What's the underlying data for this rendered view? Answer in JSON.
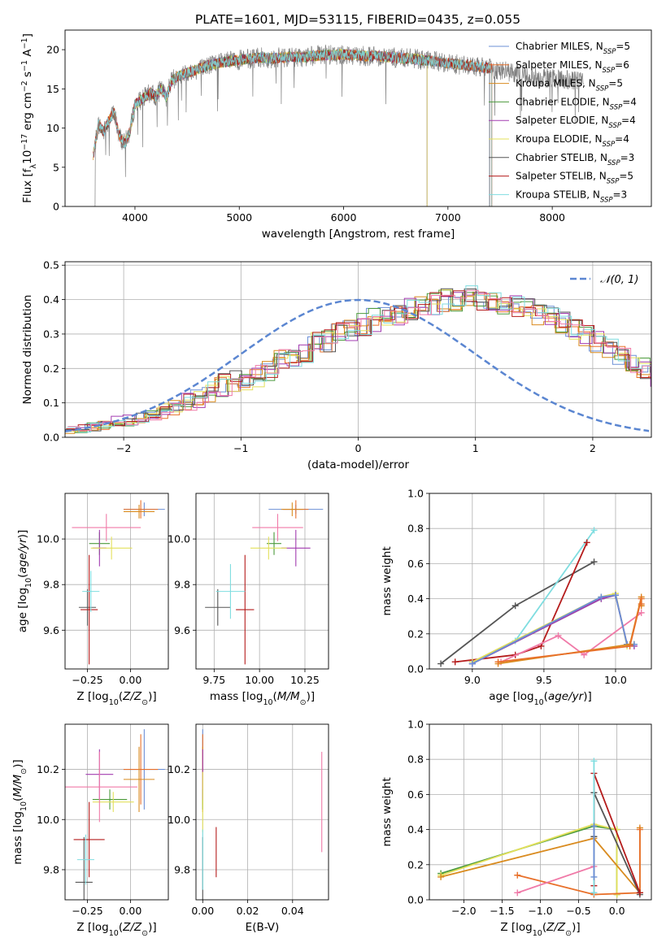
{
  "title": "PLATE=1601, MJD=53115, FIBERID=0435, z=0.055",
  "colors": [
    "#6b8fd6",
    "#e8702a",
    "#d98b1f",
    "#4b9a3c",
    "#a23bb0",
    "#e3e05b",
    "#555555",
    "#b51c1c",
    "#7fdde0",
    "#f07aa8"
  ],
  "chart_data": [
    {
      "id": "spectrum",
      "type": "line",
      "xlabel": "wavelength [Angstrom, rest frame]",
      "ylabel": "Flux [f_λ 10^-17 erg cm^-2 s^-1 A^-1]",
      "xlim": [
        3330,
        8950
      ],
      "ylim": [
        0,
        22.5
      ],
      "xticks": [
        4000,
        5000,
        6000,
        7000,
        8000
      ],
      "yticks": [
        0,
        5,
        10,
        15,
        20
      ],
      "grid": false,
      "legend_position": "top-right",
      "envelope": {
        "x": [
          3600,
          3650,
          3700,
          3750,
          3800,
          3850,
          3900,
          3950,
          4000,
          4050,
          4100,
          4150,
          4200,
          4250,
          4300,
          4350,
          4400,
          4500,
          4600,
          4700,
          4800,
          4900,
          5000,
          5100,
          5200,
          5300,
          5400,
          5500,
          5600,
          5700,
          5800,
          5900,
          6000,
          6100,
          6200,
          6300,
          6400,
          6500,
          6600,
          6700,
          6800,
          6900,
          7000,
          7100,
          7200,
          7300,
          7400,
          7500,
          7600,
          7700,
          7800,
          7900,
          8000,
          8100,
          8200,
          8300
        ],
        "y": [
          6.5,
          10.5,
          9.5,
          11,
          12,
          9,
          8,
          9.5,
          13,
          13.5,
          14,
          14.5,
          14,
          15,
          14,
          16,
          16.5,
          17,
          17.5,
          18,
          18.3,
          18.5,
          18.7,
          18.8,
          19,
          18.9,
          19,
          19.1,
          19,
          19.2,
          19.3,
          19.3,
          19.4,
          19.3,
          19.2,
          19.2,
          19.1,
          19,
          18.9,
          18.8,
          18.6,
          18.5,
          18.3,
          18.1,
          18,
          17.8,
          17.6,
          17.4,
          17.1,
          16.9,
          16.6,
          16.5,
          16.3,
          16.2,
          16.0,
          15.9
        ]
      },
      "legend": [
        {
          "label": "Chabrier MILES, N",
          "sub": "SSP",
          "suffix": "=5"
        },
        {
          "label": "Salpeter MILES, N",
          "sub": "SSP",
          "suffix": "=6"
        },
        {
          "label": "Kroupa MILES, N",
          "sub": "SSP",
          "suffix": "=5"
        },
        {
          "label": "Chabrier ELODIE, N",
          "sub": "SSP",
          "suffix": "=4"
        },
        {
          "label": "Salpeter ELODIE, N",
          "sub": "SSP",
          "suffix": "=4"
        },
        {
          "label": "Kroupa ELODIE, N",
          "sub": "SSP",
          "suffix": "=4"
        },
        {
          "label": "Chabrier STELIB, N",
          "sub": "SSP",
          "suffix": "=3"
        },
        {
          "label": "Salpeter STELIB, N",
          "sub": "SSP",
          "suffix": "=5"
        },
        {
          "label": "Kroupa STELIB, N",
          "sub": "SSP",
          "suffix": "=3"
        }
      ]
    },
    {
      "id": "residuals",
      "type": "histogram",
      "xlabel": "(data-model)/error",
      "ylabel": "Normed distribution",
      "xlim": [
        -2.5,
        2.5
      ],
      "ylim": [
        0,
        0.51
      ],
      "xticks": [
        -2,
        -1,
        0,
        1,
        2
      ],
      "yticks": [
        0.0,
        0.1,
        0.2,
        0.3,
        0.4,
        0.5
      ],
      "grid": true,
      "legend_position": "top-right",
      "gaussian_label": "𝒩(0, 1)",
      "bin_start": -2.5,
      "bin_width": 0.1,
      "base": [
        0.02,
        0.025,
        0.03,
        0.035,
        0.045,
        0.05,
        0.055,
        0.065,
        0.075,
        0.09,
        0.1,
        0.11,
        0.13,
        0.15,
        0.16,
        0.17,
        0.18,
        0.2,
        0.22,
        0.24,
        0.25,
        0.27,
        0.28,
        0.3,
        0.31,
        0.33,
        0.34,
        0.35,
        0.36,
        0.37,
        0.38,
        0.39,
        0.4,
        0.4,
        0.41,
        0.4,
        0.4,
        0.39,
        0.38,
        0.37,
        0.36,
        0.35,
        0.33,
        0.31,
        0.3,
        0.28,
        0.26,
        0.24,
        0.22,
        0.2,
        0.18,
        0.16,
        0.15,
        0.13,
        0.12,
        0.1,
        0.09,
        0.08,
        0.07,
        0.06,
        0.05,
        0.045,
        0.04,
        0.035,
        0.03,
        0.025,
        0.02,
        0.02,
        0.018,
        0.015,
        0.012,
        0.01,
        0.01,
        0.008,
        0.006,
        0.005,
        0.004,
        0.003,
        0.002,
        0.002
      ]
    },
    {
      "id": "age_vs_Z",
      "type": "errorbar",
      "xlabel": "Z [log10(Z/Z⊙)]",
      "ylabel": "age [log10(age/yr)]",
      "xlim": [
        -0.38,
        0.22
      ],
      "ylim": [
        9.43,
        10.2
      ],
      "xticks": [
        -0.25,
        0.0
      ],
      "xtick_labels": [
        "−0.25",
        "0.00"
      ],
      "yticks": [
        9.6,
        9.8,
        10.0
      ],
      "grid": true,
      "points": [
        {
          "x": 0.08,
          "y": 10.13,
          "xerr": 0.12,
          "yerr": 0.03,
          "c": 0
        },
        {
          "x": 0.06,
          "y": 10.13,
          "xerr": 0.1,
          "yerr": 0.04,
          "c": 1
        },
        {
          "x": 0.05,
          "y": 10.12,
          "xerr": 0.09,
          "yerr": 0.03,
          "c": 2
        },
        {
          "x": -0.18,
          "y": 9.98,
          "xerr": 0.06,
          "yerr": 0.05,
          "c": 3
        },
        {
          "x": -0.18,
          "y": 9.96,
          "xerr": 0.04,
          "yerr": 0.08,
          "c": 4
        },
        {
          "x": -0.11,
          "y": 9.96,
          "xerr": 0.12,
          "yerr": 0.05,
          "c": 5
        },
        {
          "x": -0.25,
          "y": 9.7,
          "xerr": 0.05,
          "yerr": 0.08,
          "c": 6
        },
        {
          "x": -0.24,
          "y": 9.69,
          "xerr": 0.05,
          "yerr": 0.24,
          "c": 7
        },
        {
          "x": -0.23,
          "y": 9.77,
          "xerr": 0.05,
          "yerr": 0.09,
          "c": 8
        },
        {
          "x": -0.14,
          "y": 10.05,
          "xerr": 0.2,
          "yerr": 0.06,
          "c": 9
        }
      ]
    },
    {
      "id": "age_vs_mass",
      "type": "errorbar",
      "xlabel": "mass [log10(M/M⊙)]",
      "ylabel": "",
      "xlim": [
        9.65,
        10.38
      ],
      "ylim": [
        9.43,
        10.2
      ],
      "xticks": [
        9.75,
        10.0,
        10.25
      ],
      "xtick_labels": [
        "9.75",
        "10.00",
        "10.25"
      ],
      "yticks": [
        9.6,
        9.8,
        10.0
      ],
      "grid": true,
      "points": [
        {
          "x": 10.2,
          "y": 10.13,
          "xerr": 0.15,
          "yerr": 0.02,
          "c": 0
        },
        {
          "x": 10.2,
          "y": 10.13,
          "xerr": 0.07,
          "yerr": 0.04,
          "c": 1
        },
        {
          "x": 10.18,
          "y": 10.13,
          "xerr": 0.06,
          "yerr": 0.03,
          "c": 2
        },
        {
          "x": 10.08,
          "y": 9.98,
          "xerr": 0.04,
          "yerr": 0.05,
          "c": 3
        },
        {
          "x": 10.2,
          "y": 9.96,
          "xerr": 0.08,
          "yerr": 0.08,
          "c": 4
        },
        {
          "x": 10.05,
          "y": 9.96,
          "xerr": 0.1,
          "yerr": 0.05,
          "c": 5
        },
        {
          "x": 9.77,
          "y": 9.7,
          "xerr": 0.07,
          "yerr": 0.08,
          "c": 6
        },
        {
          "x": 9.92,
          "y": 9.69,
          "xerr": 0.05,
          "yerr": 0.24,
          "c": 7
        },
        {
          "x": 9.84,
          "y": 9.77,
          "xerr": 0.08,
          "yerr": 0.12,
          "c": 8
        },
        {
          "x": 10.1,
          "y": 10.05,
          "xerr": 0.14,
          "yerr": 0.06,
          "c": 9
        }
      ]
    },
    {
      "id": "massweight_vs_age",
      "type": "line",
      "xlabel": "age [log10(age/yr)]",
      "ylabel": "mass weight",
      "xlim": [
        8.7,
        10.25
      ],
      "ylim": [
        0,
        1.0
      ],
      "xticks": [
        9.0,
        9.5,
        10.0
      ],
      "xtick_labels": [
        "9.0",
        "9.5",
        "10.0"
      ],
      "yticks": [
        0.0,
        0.2,
        0.4,
        0.6,
        0.8,
        1.0
      ],
      "grid": true,
      "series": [
        {
          "c": 6,
          "x": [
            8.78,
            9.3,
            9.85
          ],
          "y": [
            0.03,
            0.36,
            0.61
          ]
        },
        {
          "c": 8,
          "x": [
            9.0,
            9.3,
            9.85
          ],
          "y": [
            0.04,
            0.16,
            0.79
          ]
        },
        {
          "c": 7,
          "x": [
            8.88,
            9.3,
            9.48,
            9.8
          ],
          "y": [
            0.04,
            0.08,
            0.13,
            0.72
          ]
        },
        {
          "c": 9,
          "x": [
            9.2,
            9.6,
            9.78,
            10.18
          ],
          "y": [
            0.04,
            0.19,
            0.08,
            0.32
          ]
        },
        {
          "c": 3,
          "x": [
            9.0,
            9.9,
            10.0,
            10.08,
            10.13
          ],
          "y": [
            0.03,
            0.4,
            0.42,
            0.14,
            0.14
          ]
        },
        {
          "c": 5,
          "x": [
            9.0,
            9.9,
            10.0,
            10.08,
            10.13
          ],
          "y": [
            0.04,
            0.41,
            0.43,
            0.13,
            0.14
          ]
        },
        {
          "c": 4,
          "x": [
            9.0,
            9.9,
            10.0,
            10.08,
            10.13
          ],
          "y": [
            0.03,
            0.4,
            0.42,
            0.14,
            0.13
          ]
        },
        {
          "c": 0,
          "x": [
            9.0,
            9.9,
            10.0,
            10.08,
            10.13
          ],
          "y": [
            0.03,
            0.41,
            0.42,
            0.14,
            0.14
          ]
        },
        {
          "c": 2,
          "x": [
            9.18,
            10.1,
            10.18,
            10.18
          ],
          "y": [
            0.03,
            0.14,
            0.41,
            0.36
          ]
        },
        {
          "c": 1,
          "x": [
            9.18,
            10.1,
            10.18,
            10.18
          ],
          "y": [
            0.04,
            0.13,
            0.4,
            0.37
          ]
        }
      ]
    },
    {
      "id": "mass_vs_Z",
      "type": "errorbar",
      "xlabel": "Z [log10(Z/Z⊙)]",
      "ylabel": "mass [log10(M/M⊙)]",
      "xlim": [
        -0.38,
        0.22
      ],
      "ylim": [
        9.68,
        10.38
      ],
      "xticks": [
        -0.25,
        0.0
      ],
      "xtick_labels": [
        "−0.25",
        "0.00"
      ],
      "yticks": [
        9.8,
        10.0,
        10.2
      ],
      "grid": true,
      "points": [
        {
          "x": 0.08,
          "y": 10.2,
          "xerr": 0.12,
          "yerr": 0.16,
          "c": 0
        },
        {
          "x": 0.06,
          "y": 10.2,
          "xerr": 0.1,
          "yerr": 0.14,
          "c": 1
        },
        {
          "x": 0.05,
          "y": 10.16,
          "xerr": 0.09,
          "yerr": 0.13,
          "c": 2
        },
        {
          "x": -0.12,
          "y": 10.08,
          "xerr": 0.1,
          "yerr": 0.04,
          "c": 3
        },
        {
          "x": -0.18,
          "y": 10.18,
          "xerr": 0.08,
          "yerr": 0.1,
          "c": 4
        },
        {
          "x": -0.1,
          "y": 10.07,
          "xerr": 0.12,
          "yerr": 0.04,
          "c": 5
        },
        {
          "x": -0.27,
          "y": 9.75,
          "xerr": 0.05,
          "yerr": 0.18,
          "c": 6
        },
        {
          "x": -0.24,
          "y": 9.92,
          "xerr": 0.09,
          "yerr": 0.15,
          "c": 7
        },
        {
          "x": -0.26,
          "y": 9.84,
          "xerr": 0.05,
          "yerr": 0.1,
          "c": 8
        },
        {
          "x": -0.18,
          "y": 10.13,
          "xerr": 0.22,
          "yerr": 0.14,
          "c": 9
        }
      ]
    },
    {
      "id": "mass_vs_ebv",
      "type": "errorbar",
      "xlabel": "E(B-V)",
      "ylabel": "",
      "xlim": [
        -0.003,
        0.056
      ],
      "ylim": [
        9.68,
        10.38
      ],
      "xticks": [
        0.0,
        0.02,
        0.04
      ],
      "xtick_labels": [
        "0.00",
        "0.02",
        "0.04"
      ],
      "yticks": [
        9.8,
        10.0,
        10.2
      ],
      "grid": true,
      "points": [
        {
          "x": 0.0,
          "y": 10.2,
          "xerr": 0.0,
          "yerr": 0.16,
          "c": 0
        },
        {
          "x": 0.0,
          "y": 10.2,
          "xerr": 0.0,
          "yerr": 0.14,
          "c": 1
        },
        {
          "x": 0.0,
          "y": 10.16,
          "xerr": 0.0,
          "yerr": 0.13,
          "c": 2
        },
        {
          "x": 0.0,
          "y": 10.08,
          "xerr": 0.0,
          "yerr": 0.04,
          "c": 3
        },
        {
          "x": 0.0,
          "y": 10.18,
          "xerr": 0.0,
          "yerr": 0.1,
          "c": 4
        },
        {
          "x": 0.0,
          "y": 10.07,
          "xerr": 0.0,
          "yerr": 0.12,
          "c": 5
        },
        {
          "x": 0.0,
          "y": 9.75,
          "xerr": 0.0,
          "yerr": 0.18,
          "c": 6
        },
        {
          "x": 0.006,
          "y": 9.87,
          "xerr": 0.0,
          "yerr": 0.1,
          "c": 7
        },
        {
          "x": 0.0,
          "y": 9.84,
          "xerr": 0.0,
          "yerr": 0.12,
          "c": 8
        },
        {
          "x": 0.053,
          "y": 10.07,
          "xerr": 0.0,
          "yerr": 0.2,
          "c": 9
        }
      ]
    },
    {
      "id": "massweight_vs_Z",
      "type": "line",
      "xlabel": "Z [log10(Z/Z⊙)]",
      "ylabel": "mass weight",
      "xlim": [
        -2.45,
        0.45
      ],
      "ylim": [
        0,
        1.0
      ],
      "xticks": [
        -2.0,
        -1.5,
        -1.0,
        -0.5,
        0.0
      ],
      "xtick_labels": [
        "−2.0",
        "−1.5",
        "−1.0",
        "−0.5",
        "0.0"
      ],
      "yticks": [
        0.0,
        0.2,
        0.4,
        0.6,
        0.8,
        1.0
      ],
      "grid": true,
      "series": [
        {
          "c": 3,
          "x": [
            -2.3,
            -0.3,
            0.0,
            0.0
          ],
          "y": [
            0.15,
            0.42,
            0.4,
            0.03
          ]
        },
        {
          "c": 5,
          "x": [
            -2.3,
            -0.3,
            0.0,
            0.0
          ],
          "y": [
            0.14,
            0.43,
            0.4,
            0.03
          ]
        },
        {
          "c": 2,
          "x": [
            -2.3,
            -0.3,
            0.3,
            0.3
          ],
          "y": [
            0.13,
            0.35,
            0.04,
            0.41
          ]
        },
        {
          "c": 1,
          "x": [
            -1.3,
            -0.3,
            0.3,
            0.3
          ],
          "y": [
            0.14,
            0.03,
            0.04,
            0.4
          ]
        },
        {
          "c": 9,
          "x": [
            -1.3,
            -0.3,
            -0.3
          ],
          "y": [
            0.04,
            0.19,
            0.04
          ]
        },
        {
          "c": 6,
          "x": [
            -0.3,
            -0.3,
            0.3
          ],
          "y": [
            0.36,
            0.61,
            0.03
          ]
        },
        {
          "c": 7,
          "x": [
            -0.3,
            -0.3,
            0.3
          ],
          "y": [
            0.08,
            0.72,
            0.04
          ]
        },
        {
          "c": 8,
          "x": [
            -0.3,
            -0.3
          ],
          "y": [
            0.04,
            0.79
          ]
        },
        {
          "c": 0,
          "x": [
            -0.3,
            -0.3
          ],
          "y": [
            0.13,
            0.42
          ]
        }
      ]
    }
  ]
}
